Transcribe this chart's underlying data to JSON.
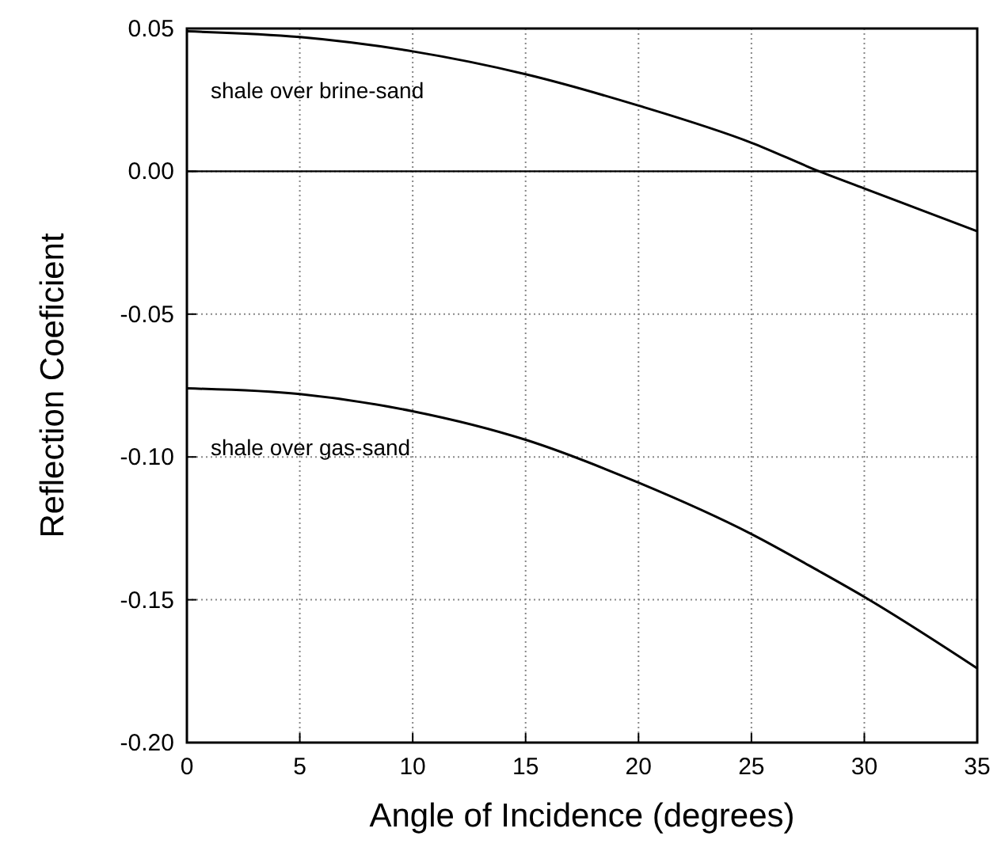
{
  "chart_data": {
    "type": "line",
    "xlabel": "Angle of Incidence (degrees)",
    "ylabel": "Reflection Coeficient",
    "xlim": [
      0,
      35
    ],
    "xticks": [
      0,
      5,
      10,
      15,
      20,
      25,
      30,
      35
    ],
    "ylim": [
      -0.2,
      0.05
    ],
    "yticks": [
      {
        "value": -0.2,
        "label": "-0.20"
      },
      {
        "value": -0.15,
        "label": "-0.15"
      },
      {
        "value": -0.1,
        "label": "-0.10"
      },
      {
        "value": -0.05,
        "label": "-0.05"
      },
      {
        "value": 0,
        "label": "0.00"
      },
      {
        "value": 0.05,
        "label": "0.05"
      }
    ],
    "grid": true,
    "line_style": "solid",
    "marker": "none",
    "x": [
      0,
      5,
      10,
      15,
      20,
      25,
      28,
      30,
      35
    ],
    "series": [
      {
        "color": "#000000",
        "values": [
          0.049,
          0.047,
          0.042,
          0.034,
          0.023,
          0.01,
          0.0,
          -0.006,
          -0.021
        ]
      },
      {
        "color": "#000000",
        "values": [
          -0.076,
          -0.078,
          -0.084,
          -0.094,
          -0.109,
          -0.127,
          -0.14,
          -0.149,
          -0.174
        ]
      }
    ],
    "ref_lines": [
      {
        "axis": "y",
        "value": 0,
        "color": "#000000",
        "line_style": "solid"
      }
    ],
    "annotations": [
      "shale over brine-sand",
      "shale over gas-sand"
    ]
  }
}
